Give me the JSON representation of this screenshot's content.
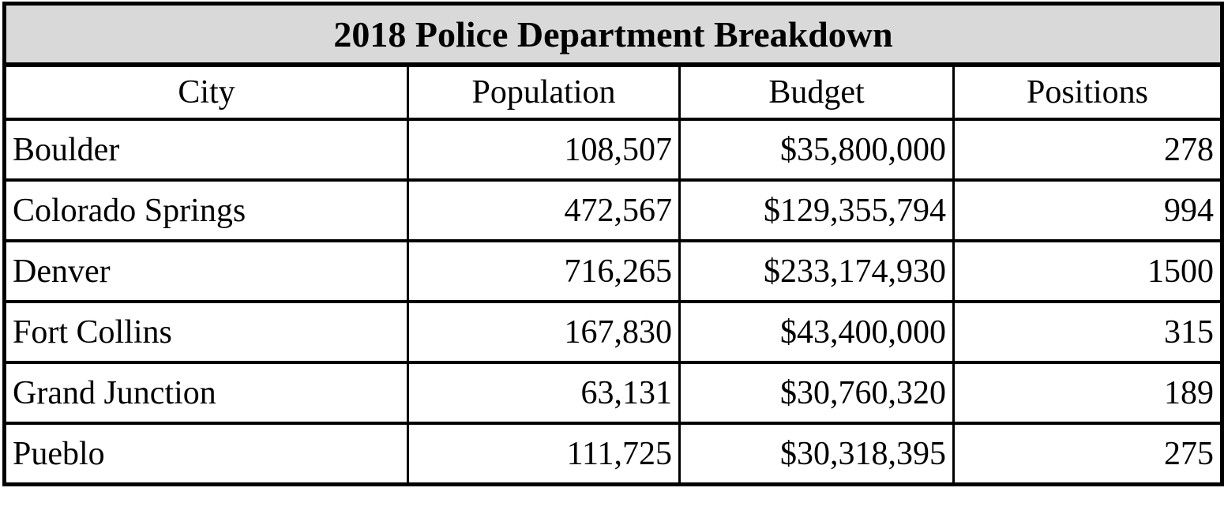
{
  "table": {
    "title": "2018 Police Department Breakdown",
    "columns": [
      "City",
      "Population",
      "Budget",
      "Positions"
    ],
    "rows": [
      {
        "city": "Boulder",
        "population": "108,507",
        "budget": "$35,800,000",
        "positions": "278"
      },
      {
        "city": "Colorado Springs",
        "population": "472,567",
        "budget": "$129,355,794",
        "positions": "994"
      },
      {
        "city": "Denver",
        "population": "716,265",
        "budget": "$233,174,930",
        "positions": "1500"
      },
      {
        "city": "Fort Collins",
        "population": "167,830",
        "budget": "$43,400,000",
        "positions": "315"
      },
      {
        "city": "Grand Junction",
        "population": "63,131",
        "budget": "$30,760,320",
        "positions": "189"
      },
      {
        "city": "Pueblo",
        "population": "111,725",
        "budget": "$30,318,395",
        "positions": "275"
      }
    ]
  },
  "colors": {
    "title_background": "#d9d9d9",
    "border": "#000000",
    "page_background": "#ffffff",
    "text": "#000000"
  },
  "chart_data": {
    "type": "table",
    "title": "2018 Police Department Breakdown",
    "columns": [
      "City",
      "Population",
      "Budget",
      "Positions"
    ],
    "rows": [
      [
        "Boulder",
        108507,
        "$35,800,000",
        278
      ],
      [
        "Colorado Springs",
        472567,
        "$129,355,794",
        994
      ],
      [
        "Denver",
        716265,
        "$233,174,930",
        1500
      ],
      [
        "Fort Collins",
        167830,
        "$43,400,000",
        315
      ],
      [
        "Grand Junction",
        63131,
        "$30,760,320",
        189
      ],
      [
        "Pueblo",
        111725,
        "$30,318,395",
        275
      ]
    ]
  }
}
